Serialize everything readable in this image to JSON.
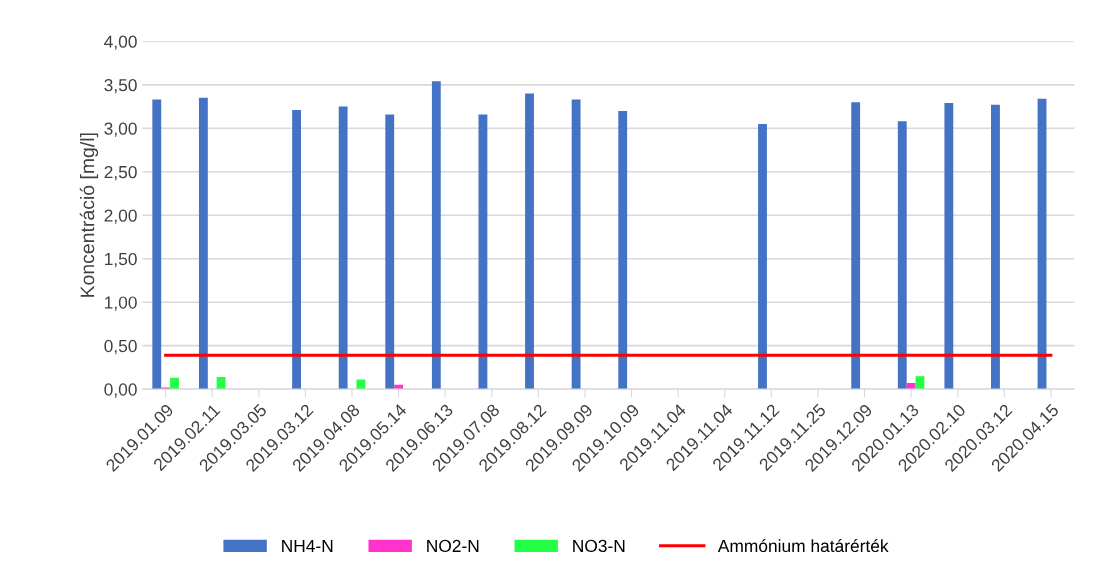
{
  "chart_data": {
    "type": "bar",
    "ylabel": "Koncentráció [mg/l]",
    "categories": [
      "2019.01.09",
      "2019.02.11",
      "2019.03.05",
      "2019.03.12",
      "2019.04.08",
      "2019.05.14",
      "2019.06.13",
      "2019.07.08",
      "2019.08.12",
      "2019.09.09",
      "2019.10.09",
      "2019.11.04",
      "2019.11.04",
      "2019.11.12",
      "2019.11.25",
      "2019.12.09",
      "2020.01.13",
      "2020.02.10",
      "2020.03.12",
      "2020.04.15"
    ],
    "series": [
      {
        "name": "NH4-N",
        "color": "#4472c4",
        "values": [
          3.33,
          3.35,
          null,
          3.21,
          3.25,
          3.16,
          3.54,
          3.16,
          3.4,
          3.33,
          3.2,
          null,
          null,
          3.05,
          null,
          3.3,
          3.08,
          3.29,
          3.27,
          3.34
        ]
      },
      {
        "name": "NO2-N",
        "color": "#ff33cc",
        "values": [
          0.02,
          null,
          null,
          null,
          null,
          0.05,
          null,
          null,
          null,
          null,
          null,
          null,
          null,
          null,
          null,
          null,
          0.07,
          null,
          null,
          null
        ]
      },
      {
        "name": "NO3-N",
        "color": "#22ff44",
        "values": [
          0.13,
          0.14,
          null,
          null,
          0.11,
          null,
          null,
          null,
          null,
          null,
          null,
          null,
          null,
          null,
          null,
          null,
          0.15,
          null,
          null,
          null
        ]
      },
      {
        "name": "Ammónium határérték",
        "color": "#ff0000",
        "type": "line",
        "values": [
          0.39,
          0.39,
          0.39,
          0.39,
          0.39,
          0.39,
          0.39,
          0.39,
          0.39,
          0.39,
          0.39,
          0.39,
          0.39,
          0.39,
          0.39,
          0.39,
          0.39,
          0.39,
          0.39,
          0.39
        ]
      }
    ],
    "ylim": [
      0,
      4
    ],
    "yticks": [
      {
        "value": 0,
        "label": "0,00"
      },
      {
        "value": 0.5,
        "label": "0,50"
      },
      {
        "value": 1,
        "label": "1,00"
      },
      {
        "value": 1.5,
        "label": "1,50"
      },
      {
        "value": 2,
        "label": "2,00"
      },
      {
        "value": 2.5,
        "label": "2,50"
      },
      {
        "value": 3,
        "label": "3,00"
      },
      {
        "value": 3.5,
        "label": "3,50"
      },
      {
        "value": 4,
        "label": "4,00"
      }
    ],
    "grid": "y",
    "legend": "bottom"
  }
}
